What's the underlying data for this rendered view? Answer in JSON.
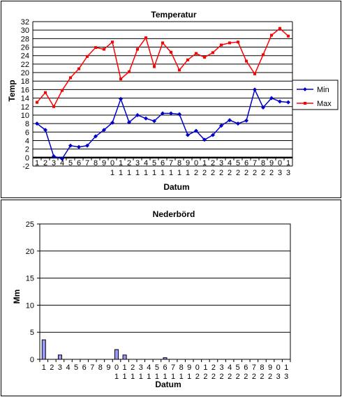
{
  "chart_data": [
    {
      "type": "line",
      "title": "Temperatur",
      "xlabel": "Datum",
      "ylabel": "Temp",
      "ylim": [
        -2,
        32
      ],
      "ytick_step": 2,
      "categories": [
        "1",
        "2",
        "3",
        "4",
        "5",
        "6",
        "7",
        "8",
        "9",
        "10",
        "11",
        "12",
        "13",
        "14",
        "15",
        "16",
        "17",
        "18",
        "19",
        "20",
        "21",
        "22",
        "23",
        "24",
        "25",
        "26",
        "27",
        "28",
        "29",
        "30",
        "31"
      ],
      "grid": true,
      "legend": "right",
      "series": [
        {
          "name": "Min",
          "color": "#0000cc",
          "values": [
            8,
            6.5,
            0.3,
            -0.3,
            2.8,
            2.5,
            2.8,
            5,
            6.5,
            8.2,
            13.8,
            8.3,
            10,
            9.2,
            8.6,
            10.4,
            10.4,
            10.2,
            5.3,
            6.3,
            4.2,
            5.3,
            7.5,
            8.8,
            8,
            8.7,
            16,
            11.8,
            14,
            13.2,
            13
          ]
        },
        {
          "name": "Max",
          "color": "#ff0000",
          "values": [
            13,
            15.3,
            12,
            15.8,
            18.8,
            20.9,
            23.8,
            25.9,
            25.5,
            27.2,
            18.5,
            20.2,
            25.5,
            28.2,
            21.4,
            27,
            24.8,
            20.6,
            23,
            24.5,
            23.6,
            24.7,
            26.5,
            27,
            27.2,
            22.7,
            19.7,
            24.2,
            28.8,
            30.4,
            28.6
          ]
        }
      ]
    },
    {
      "type": "bar",
      "title": "Nederbörd",
      "xlabel": "Datum",
      "ylabel": "Mm",
      "ylim": [
        0,
        25
      ],
      "ytick_step": 5,
      "categories": [
        "1",
        "2",
        "3",
        "4",
        "5",
        "6",
        "7",
        "8",
        "9",
        "10",
        "11",
        "12",
        "13",
        "14",
        "15",
        "16",
        "17",
        "18",
        "19",
        "20",
        "21",
        "22",
        "23",
        "24",
        "25",
        "26",
        "27",
        "28",
        "29",
        "30",
        "31"
      ],
      "grid": true,
      "bar_color": "#9999ff",
      "values": [
        3.6,
        0,
        0.8,
        0,
        0,
        0,
        0,
        0,
        0,
        1.8,
        0.8,
        0,
        0,
        0,
        0,
        0.3,
        0,
        0,
        0,
        0,
        0,
        0,
        0,
        0,
        0,
        0,
        0,
        0,
        0,
        0,
        0
      ]
    }
  ]
}
